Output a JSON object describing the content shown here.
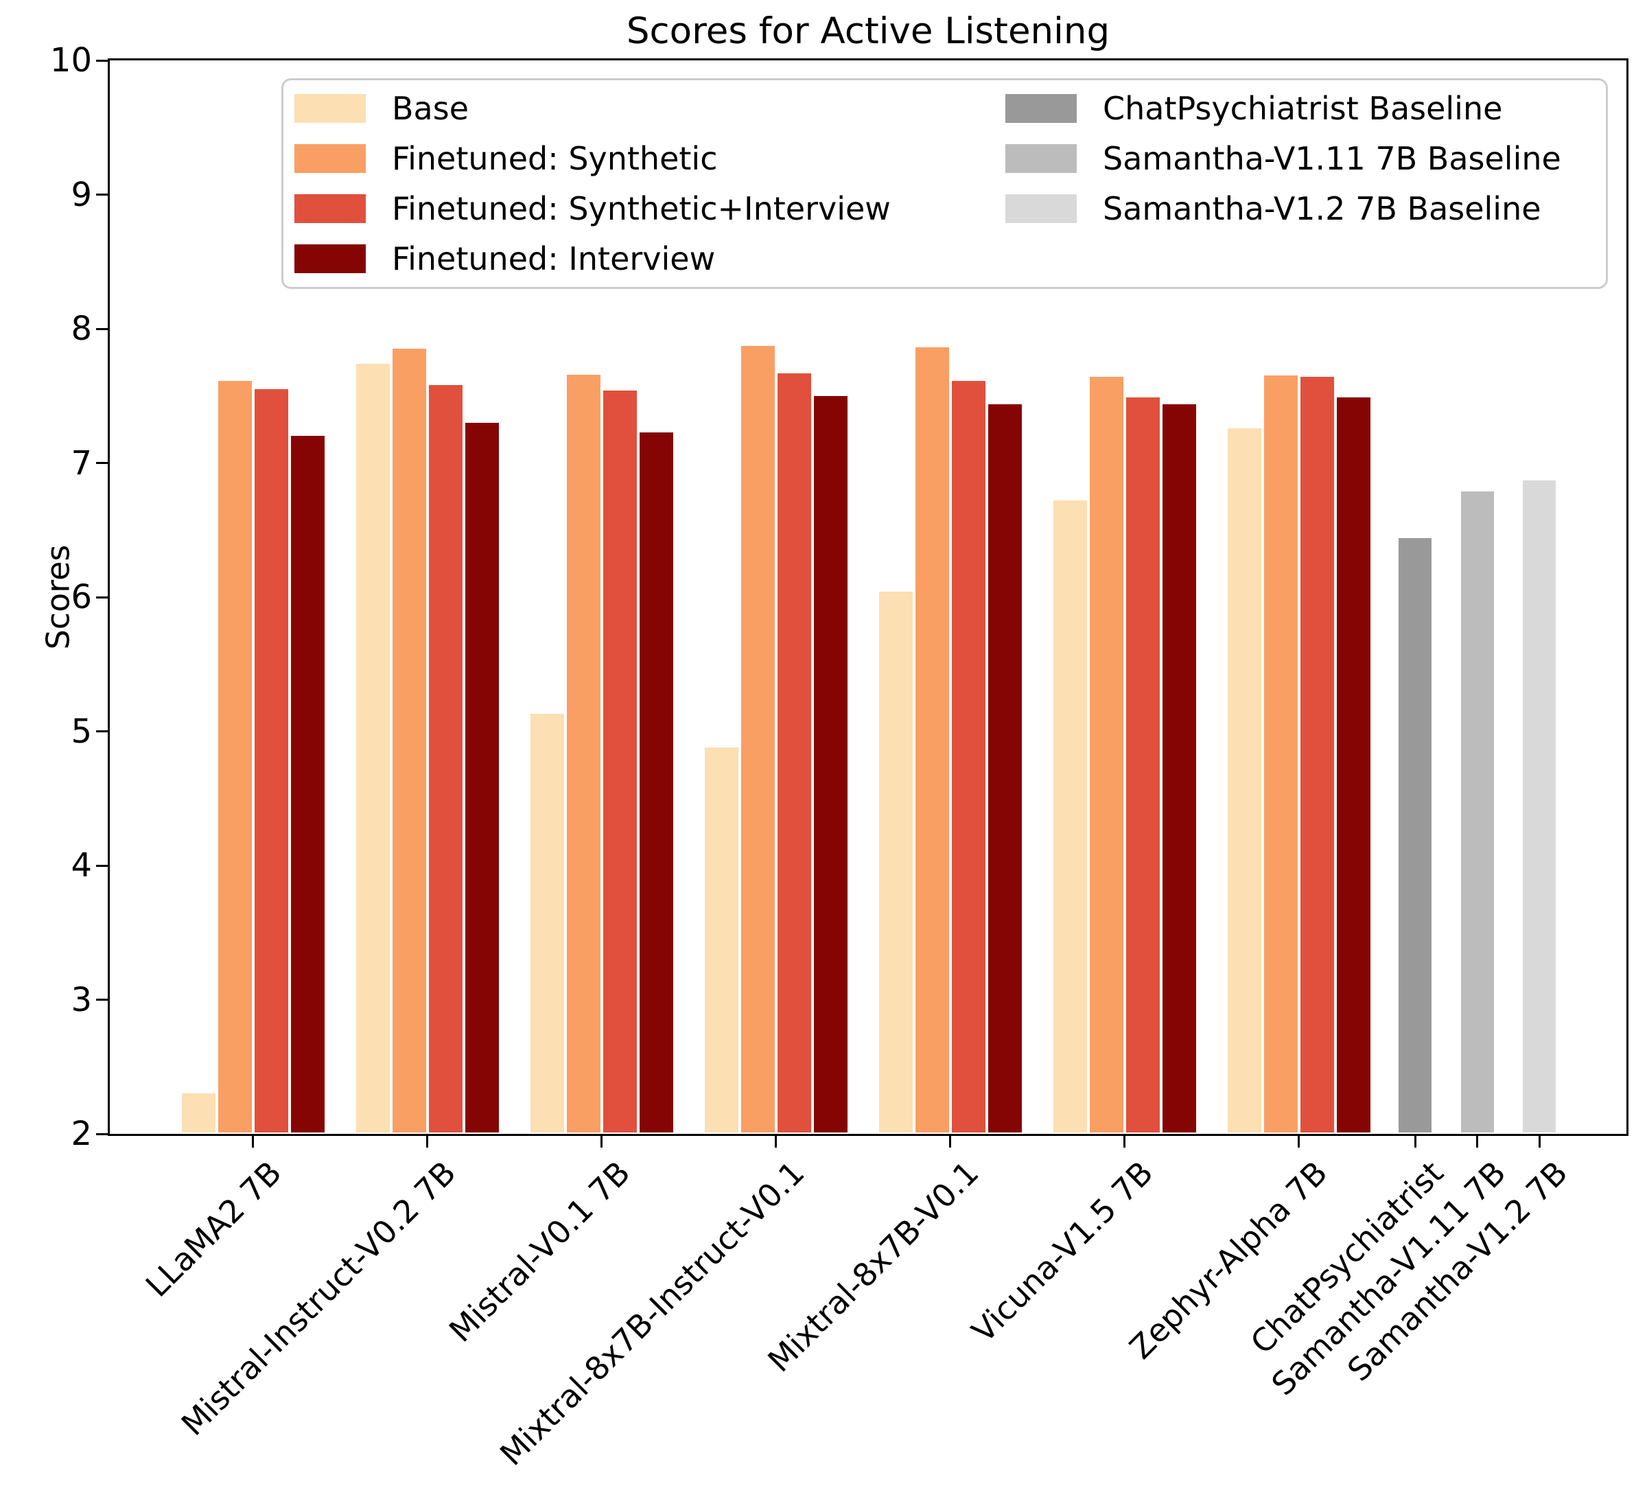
{
  "figure": {
    "title": "Scores for Active Listening",
    "ylabel": "Scores"
  },
  "chart_data": {
    "type": "bar",
    "title": "Scores for Active Listening",
    "xlabel": "",
    "ylabel": "Scores",
    "ylim": [
      2,
      10
    ],
    "yticks": [
      2,
      3,
      4,
      5,
      6,
      7,
      8,
      9,
      10
    ],
    "grid": false,
    "legend_position": "upper center, two columns inside plot",
    "categories": [
      "LLaMA2 7B",
      "Mistral-Instruct-V0.2 7B",
      "Mistral-V0.1 7B",
      "Mixtral-8x7B-Instruct-V0.1",
      "Mixtral-8x7B-V0.1",
      "Vicuna-V1.5 7B",
      "Zephyr-Alpha 7B"
    ],
    "series": [
      {
        "name": "Base",
        "color": "#fcdfb2",
        "values": [
          2.31,
          7.75,
          5.14,
          4.89,
          6.05,
          6.73,
          7.27
        ]
      },
      {
        "name": "Finetuned: Synthetic",
        "color": "#f99f64",
        "values": [
          7.62,
          7.86,
          7.67,
          7.88,
          7.87,
          7.65,
          7.66
        ]
      },
      {
        "name": "Finetuned: Synthetic+Interview",
        "color": "#e0503c",
        "values": [
          7.56,
          7.59,
          7.55,
          7.68,
          7.62,
          7.5,
          7.65
        ]
      },
      {
        "name": "Finetuned: Interview",
        "color": "#850505",
        "values": [
          7.21,
          7.31,
          7.24,
          7.51,
          7.45,
          7.45,
          7.5
        ]
      }
    ],
    "baselines": [
      {
        "category": "ChatPsychiatrist",
        "legend_label": "ChatPsychiatrist Baseline",
        "color": "#999999",
        "value": 6.45
      },
      {
        "category": "Samantha-V1.11 7B",
        "legend_label": "Samantha-V1.11 7B Baseline",
        "color": "#bcbcbc",
        "value": 6.8
      },
      {
        "category": "Samantha-V1.2 7B",
        "legend_label": "Samantha-V1.2 7B Baseline",
        "color": "#d9d9d9",
        "value": 6.88
      }
    ]
  }
}
